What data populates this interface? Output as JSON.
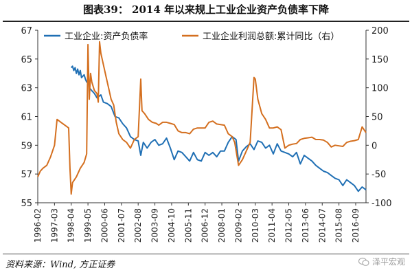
{
  "header": {
    "title": "图表39：  2014 年以来规上工业企业资产负债率下降"
  },
  "footer": {
    "source": "资料来源：Wind, 方正证券",
    "watermark": "泽平宏观"
  },
  "colors": {
    "left_series": "#1f6fb4",
    "right_series": "#d46f1f",
    "axis": "#333333"
  },
  "chart_data": {
    "type": "line",
    "title": "图表39：  2014 年以来规上工业企业资产负债率下降",
    "legend_position": "top",
    "grid": false,
    "x_ticks": [
      "1996-02",
      "1997-03",
      "1998-04",
      "1999-05",
      "2000-06",
      "2001-07",
      "2002-08",
      "2003-09",
      "2004-10",
      "2005-11",
      "2006-12",
      "2008-01",
      "2009-02",
      "2010-03",
      "2011-04",
      "2012-05",
      "2013-06",
      "2014-07",
      "2015-08",
      "2016-09"
    ],
    "x_range": [
      "1996-02",
      "2017-05"
    ],
    "y_left": {
      "ticks": [
        "55",
        "57",
        "59",
        "61",
        "63",
        "65",
        "67"
      ],
      "range": [
        55,
        67
      ]
    },
    "y_right": {
      "ticks": [
        "-100",
        "-50",
        "0",
        "50",
        "100",
        "150",
        "200"
      ],
      "range": [
        -100,
        200
      ]
    },
    "series": [
      {
        "name": "工业企业:资产负债率",
        "axis": "left",
        "points": [
          [
            "1998-04",
            64.4
          ],
          [
            "1998-05",
            64.5
          ],
          [
            "1998-06",
            64.2
          ],
          [
            "1998-07",
            64.4
          ],
          [
            "1998-08",
            64.0
          ],
          [
            "1998-09",
            64.3
          ],
          [
            "1998-10",
            63.9
          ],
          [
            "1998-11",
            64.2
          ],
          [
            "1998-12",
            63.7
          ],
          [
            "1999-02",
            63.9
          ],
          [
            "1999-03",
            63.6
          ],
          [
            "1999-04",
            63.4
          ],
          [
            "1999-05",
            63.5
          ],
          [
            "1999-06",
            63.0
          ],
          [
            "1999-08",
            62.8
          ],
          [
            "1999-10",
            62.6
          ],
          [
            "1999-12",
            62.3
          ],
          [
            "2000-03",
            62.5
          ],
          [
            "2000-05",
            62.0
          ],
          [
            "2000-08",
            61.9
          ],
          [
            "2000-11",
            61.7
          ],
          [
            "2001-02",
            61.0
          ],
          [
            "2001-05",
            60.9
          ],
          [
            "2001-08",
            60.5
          ],
          [
            "2001-11",
            60.2
          ],
          [
            "2002-02",
            59.6
          ],
          [
            "2002-05",
            59.4
          ],
          [
            "2002-08",
            59.3
          ],
          [
            "2002-10",
            58.3
          ],
          [
            "2002-12",
            59.2
          ],
          [
            "2003-03",
            58.8
          ],
          [
            "2003-06",
            59.2
          ],
          [
            "2003-09",
            59.4
          ],
          [
            "2003-12",
            59.0
          ],
          [
            "2004-03",
            59.1
          ],
          [
            "2004-06",
            59.5
          ],
          [
            "2004-09",
            58.8
          ],
          [
            "2004-12",
            58.0
          ],
          [
            "2005-03",
            58.6
          ],
          [
            "2005-06",
            58.5
          ],
          [
            "2005-09",
            58.2
          ],
          [
            "2005-12",
            57.9
          ],
          [
            "2006-03",
            58.5
          ],
          [
            "2006-06",
            58.0
          ],
          [
            "2006-09",
            57.9
          ],
          [
            "2006-12",
            58.5
          ],
          [
            "2007-03",
            58.3
          ],
          [
            "2007-06",
            58.5
          ],
          [
            "2007-09",
            58.2
          ],
          [
            "2007-12",
            58.6
          ],
          [
            "2008-03",
            58.6
          ],
          [
            "2008-06",
            59.2
          ],
          [
            "2008-09",
            59.6
          ],
          [
            "2008-12",
            59.4
          ],
          [
            "2009-02",
            57.9
          ],
          [
            "2009-05",
            58.6
          ],
          [
            "2009-08",
            58.9
          ],
          [
            "2009-11",
            59.1
          ],
          [
            "2010-02",
            58.7
          ],
          [
            "2010-05",
            59.3
          ],
          [
            "2010-08",
            59.2
          ],
          [
            "2010-11",
            58.8
          ],
          [
            "2011-02",
            59.0
          ],
          [
            "2011-05",
            58.4
          ],
          [
            "2011-08",
            59.1
          ],
          [
            "2011-11",
            58.6
          ],
          [
            "2012-02",
            58.5
          ],
          [
            "2012-05",
            58.4
          ],
          [
            "2012-08",
            58.2
          ],
          [
            "2012-11",
            58.5
          ],
          [
            "2013-02",
            57.7
          ],
          [
            "2013-05",
            58.3
          ],
          [
            "2013-08",
            58.1
          ],
          [
            "2013-11",
            57.9
          ],
          [
            "2014-02",
            57.6
          ],
          [
            "2014-05",
            57.4
          ],
          [
            "2014-08",
            57.2
          ],
          [
            "2014-11",
            57.1
          ],
          [
            "2015-02",
            56.9
          ],
          [
            "2015-05",
            56.7
          ],
          [
            "2015-08",
            56.6
          ],
          [
            "2015-11",
            56.2
          ],
          [
            "2016-02",
            56.6
          ],
          [
            "2016-05",
            56.4
          ],
          [
            "2016-08",
            56.2
          ],
          [
            "2016-11",
            55.8
          ],
          [
            "2017-02",
            56.1
          ],
          [
            "2017-05",
            55.9
          ]
        ]
      },
      {
        "name": "工业企业利润总额:累计同比（右）",
        "axis": "right",
        "points": [
          [
            "1996-02",
            -55
          ],
          [
            "1996-04",
            -45
          ],
          [
            "1996-06",
            -40
          ],
          [
            "1996-09",
            -35
          ],
          [
            "1996-12",
            -20
          ],
          [
            "1997-03",
            0
          ],
          [
            "1997-05",
            45
          ],
          [
            "1997-08",
            40
          ],
          [
            "1997-11",
            35
          ],
          [
            "1998-02",
            30
          ],
          [
            "1998-03",
            -40
          ],
          [
            "1998-04",
            -85
          ],
          [
            "1998-05",
            -65
          ],
          [
            "1998-08",
            -55
          ],
          [
            "1998-11",
            -40
          ],
          [
            "1999-02",
            -30
          ],
          [
            "1999-04",
            -15
          ],
          [
            "1999-05",
            175
          ],
          [
            "1999-06",
            80
          ],
          [
            "1999-07",
            125
          ],
          [
            "1999-08",
            110
          ],
          [
            "1999-10",
            95
          ],
          [
            "1999-12",
            90
          ],
          [
            "2000-01",
            75
          ],
          [
            "2000-02",
            180
          ],
          [
            "2000-03",
            160
          ],
          [
            "2000-05",
            140
          ],
          [
            "2000-07",
            120
          ],
          [
            "2000-09",
            100
          ],
          [
            "2000-11",
            80
          ],
          [
            "2001-01",
            70
          ],
          [
            "2001-03",
            40
          ],
          [
            "2001-05",
            20
          ],
          [
            "2001-08",
            10
          ],
          [
            "2001-11",
            5
          ],
          [
            "2002-02",
            -5
          ],
          [
            "2002-05",
            10
          ],
          [
            "2002-08",
            15
          ],
          [
            "2002-10",
            115
          ],
          [
            "2002-11",
            60
          ],
          [
            "2003-01",
            55
          ],
          [
            "2003-04",
            45
          ],
          [
            "2003-07",
            40
          ],
          [
            "2003-10",
            38
          ],
          [
            "2003-12",
            35
          ],
          [
            "2004-03",
            40
          ],
          [
            "2004-06",
            40
          ],
          [
            "2004-09",
            38
          ],
          [
            "2004-12",
            36
          ],
          [
            "2005-03",
            25
          ],
          [
            "2005-06",
            22
          ],
          [
            "2005-09",
            22
          ],
          [
            "2005-12",
            20
          ],
          [
            "2006-03",
            28
          ],
          [
            "2006-06",
            30
          ],
          [
            "2006-09",
            30
          ],
          [
            "2006-12",
            30
          ],
          [
            "2007-03",
            40
          ],
          [
            "2007-06",
            42
          ],
          [
            "2007-09",
            37
          ],
          [
            "2007-12",
            36
          ],
          [
            "2008-03",
            35
          ],
          [
            "2008-06",
            20
          ],
          [
            "2008-09",
            15
          ],
          [
            "2008-11",
            5
          ],
          [
            "2009-02",
            -35
          ],
          [
            "2009-05",
            -25
          ],
          [
            "2009-08",
            -10
          ],
          [
            "2009-11",
            5
          ],
          [
            "2010-02",
            118
          ],
          [
            "2010-03",
            115
          ],
          [
            "2010-05",
            80
          ],
          [
            "2010-08",
            55
          ],
          [
            "2010-11",
            45
          ],
          [
            "2011-02",
            30
          ],
          [
            "2011-05",
            30
          ],
          [
            "2011-08",
            32
          ],
          [
            "2011-11",
            27
          ],
          [
            "2012-02",
            -5
          ],
          [
            "2012-05",
            0
          ],
          [
            "2012-08",
            2
          ],
          [
            "2012-11",
            3
          ],
          [
            "2013-02",
            10
          ],
          [
            "2013-05",
            12
          ],
          [
            "2013-08",
            13
          ],
          [
            "2013-11",
            14
          ],
          [
            "2014-02",
            10
          ],
          [
            "2014-05",
            10
          ],
          [
            "2014-08",
            9
          ],
          [
            "2014-11",
            5
          ],
          [
            "2015-02",
            -3
          ],
          [
            "2015-05",
            0
          ],
          [
            "2015-08",
            -1
          ],
          [
            "2015-11",
            -2
          ],
          [
            "2016-02",
            5
          ],
          [
            "2016-05",
            7
          ],
          [
            "2016-08",
            8
          ],
          [
            "2016-11",
            10
          ],
          [
            "2017-02",
            32
          ],
          [
            "2017-05",
            22
          ]
        ]
      }
    ]
  }
}
